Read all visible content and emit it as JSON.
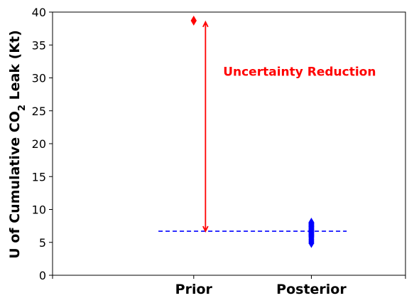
{
  "chart_data": {
    "type": "scatter",
    "title": "",
    "xlabel": "",
    "ylabel": "U of Cumulative CO2 Leak (Kt)",
    "ylabel_parts": {
      "before": "U of Cumulative CO",
      "subscript": "2",
      "after": " Leak (Kt)"
    },
    "ylim": [
      0,
      40
    ],
    "yticks": [
      0,
      5,
      10,
      15,
      20,
      25,
      30,
      35,
      40
    ],
    "categories": [
      "Prior",
      "Posterior"
    ],
    "grid": false,
    "series": [
      {
        "category": "Prior",
        "color": "#ff0000",
        "marker": "thin-diamond",
        "values": [
          38.7
        ]
      },
      {
        "category": "Posterior",
        "color": "#0000ff",
        "marker": "thin-diamond",
        "values": [
          4.9,
          5.2,
          5.5,
          5.8,
          6.0,
          6.2,
          6.4,
          6.6,
          6.8,
          7.0,
          7.2,
          7.4,
          7.6,
          7.8,
          8.0
        ]
      }
    ],
    "reference_line": {
      "y": 6.7,
      "x_from": 0.7,
      "x_to": 2.3,
      "style": "dashed",
      "color": "#0000ff"
    },
    "arrow": {
      "x": 1.1,
      "y_from": 38.5,
      "y_to": 6.7,
      "color": "#ff0000",
      "double_headed": true
    },
    "annotation": {
      "text": "Uncertainty Reduction",
      "x": 1.25,
      "y": 31,
      "color": "#ff0000"
    },
    "xlim": [
      -0.2,
      2.8
    ]
  }
}
